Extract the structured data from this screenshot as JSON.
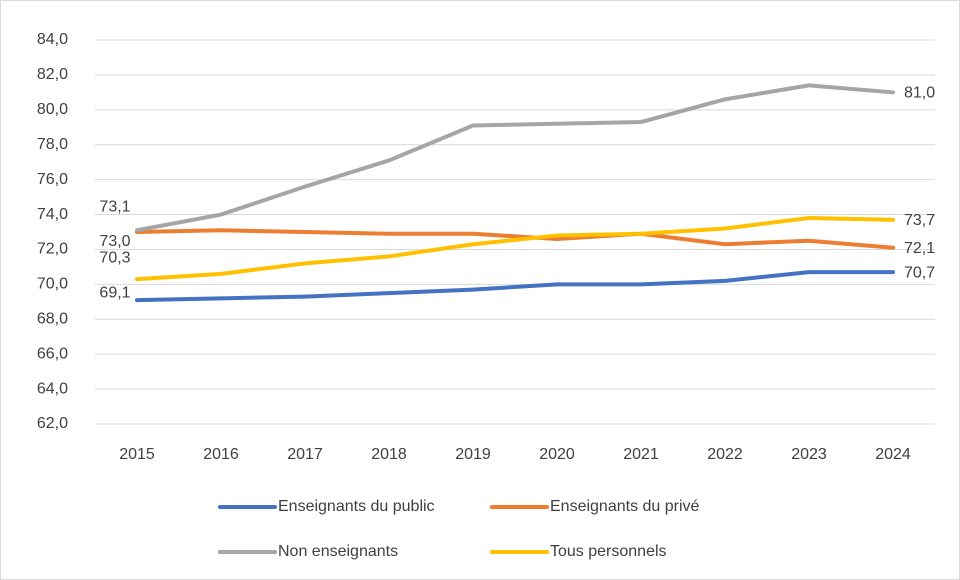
{
  "chart_data": {
    "type": "line",
    "categories": [
      "2015",
      "2016",
      "2017",
      "2018",
      "2019",
      "2020",
      "2021",
      "2022",
      "2023",
      "2024"
    ],
    "series": [
      {
        "name": "Enseignants du public",
        "color": "#4472c4",
        "values": [
          69.1,
          69.2,
          69.3,
          69.5,
          69.7,
          70.0,
          70.0,
          70.2,
          70.7,
          70.7
        ],
        "value_labels": [
          "69,1",
          null,
          null,
          null,
          null,
          null,
          null,
          null,
          null,
          "70,7"
        ]
      },
      {
        "name": "Enseignants du privé",
        "color": "#ed7d31",
        "values": [
          73.0,
          73.1,
          73.0,
          72.9,
          72.9,
          72.6,
          72.9,
          72.3,
          72.5,
          72.1
        ],
        "value_labels": [
          "73,0",
          null,
          null,
          null,
          null,
          null,
          null,
          null,
          null,
          "72,1"
        ]
      },
      {
        "name": "Non enseignants",
        "color": "#a5a5a5",
        "values": [
          73.1,
          74.0,
          75.6,
          77.1,
          79.1,
          79.2,
          79.3,
          80.6,
          81.4,
          81.0
        ],
        "value_labels": [
          "73,1",
          null,
          null,
          null,
          null,
          null,
          null,
          null,
          null,
          "81,0"
        ]
      },
      {
        "name": "Tous personnels",
        "color": "#ffc000",
        "values": [
          70.3,
          70.6,
          71.2,
          71.6,
          72.3,
          72.8,
          72.9,
          73.2,
          73.8,
          73.7
        ],
        "value_labels": [
          "70,3",
          null,
          null,
          null,
          null,
          null,
          null,
          null,
          null,
          "73,7"
        ]
      }
    ],
    "ylim": [
      62,
      84
    ],
    "yticks": [
      {
        "value": 62,
        "label": "62,0"
      },
      {
        "value": 64,
        "label": "64,0"
      },
      {
        "value": 66,
        "label": "66,0"
      },
      {
        "value": 68,
        "label": "68,0"
      },
      {
        "value": 70,
        "label": "70,0"
      },
      {
        "value": 72,
        "label": "72,0"
      },
      {
        "value": 74,
        "label": "74,0"
      },
      {
        "value": 76,
        "label": "76,0"
      },
      {
        "value": 78,
        "label": "78,0"
      },
      {
        "value": 80,
        "label": "80,0"
      },
      {
        "value": 82,
        "label": "82,0"
      },
      {
        "value": 84,
        "label": "84,0"
      }
    ],
    "grid": true,
    "legend": "bottom"
  }
}
